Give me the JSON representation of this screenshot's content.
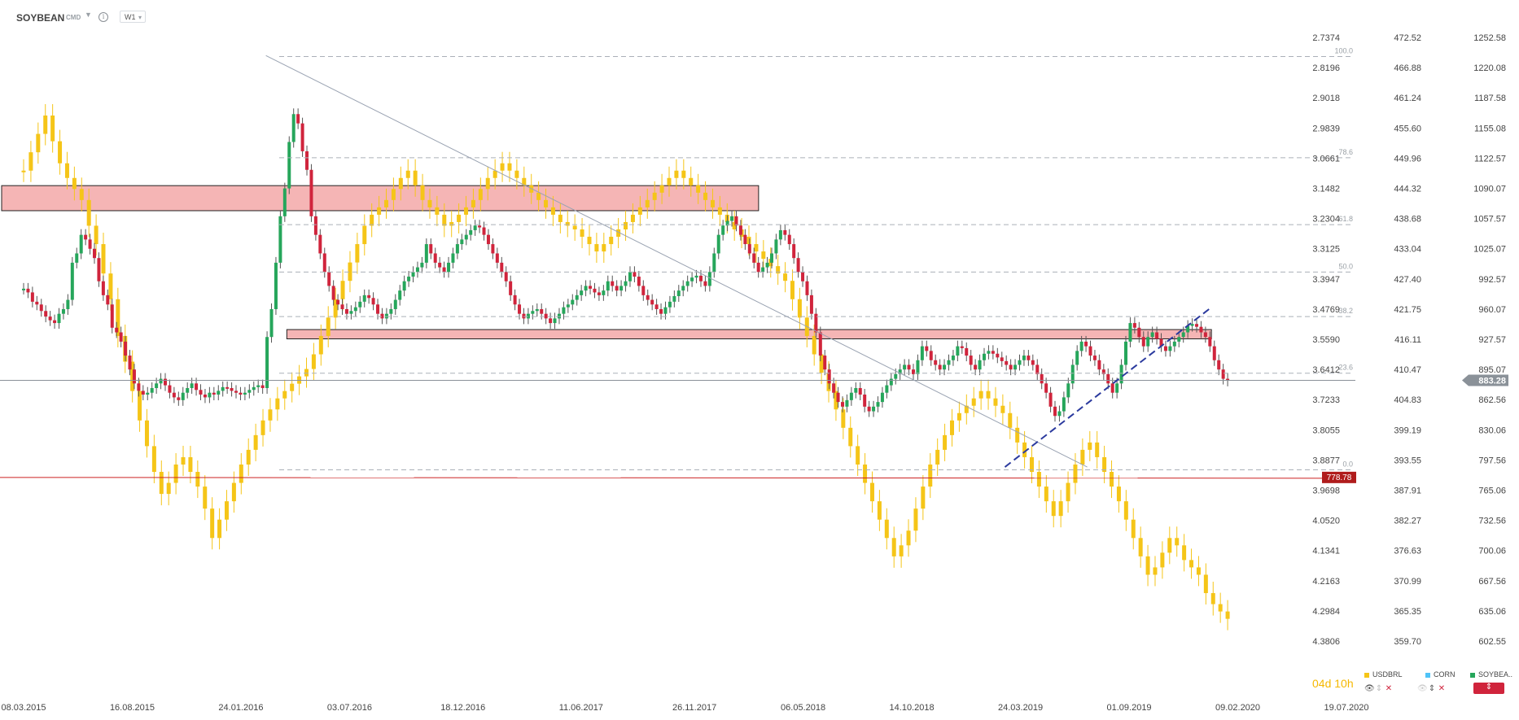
{
  "toolbar": {
    "symbol": "SOYBEAN",
    "instrument_type": "CMD",
    "info_glyph": "i",
    "interval": "W1"
  },
  "colors": {
    "usdbrl": "#f5c518",
    "corn": "#4fc3f7",
    "soybean_up": "#26a65b",
    "soybean_down": "#d0243c",
    "zone_fill": "#f5b5b5",
    "support_line": "#cc2222",
    "trend_dashed": "#2b3a9e",
    "trend_gray": "#9aa3b2",
    "fib_line": "#aab0b8",
    "price_marker_bg": "#8a9198",
    "level_marker_bg": "#b01c1c"
  },
  "chart_data": {
    "type": "candlestick",
    "timeframe": "W1",
    "series": [
      {
        "name": "SOYBEAN",
        "axis": "right",
        "style": "candles"
      },
      {
        "name": "USDBRL",
        "axis": "left",
        "style": "candles"
      },
      {
        "name": "CORN",
        "axis": "middle"
      }
    ],
    "x_tick_labels": [
      "08.03.2015",
      "16.08.2015",
      "24.01.2016",
      "03.07.2016",
      "18.12.2016",
      "11.06.2017",
      "26.11.2017",
      "06.05.2018",
      "14.10.2018",
      "24.03.2019",
      "01.09.2019",
      "09.02.2020",
      "19.07.2020"
    ],
    "axis_left": {
      "labels": [
        "2.7374",
        "2.8196",
        "2.9018",
        "2.9839",
        "3.0661",
        "3.1482",
        "3.2304",
        "3.3125",
        "3.3947",
        "3.4769",
        "3.5590",
        "3.6412",
        "3.7233",
        "3.8055",
        "3.8877",
        "3.9698",
        "4.0520",
        "4.1341",
        "4.2163",
        "4.2984",
        "4.3806"
      ],
      "inverted": true
    },
    "axis_mid": {
      "labels": [
        "472.52",
        "466.88",
        "461.24",
        "455.60",
        "449.96",
        "444.32",
        "438.68",
        "433.04",
        "427.40",
        "421.75",
        "416.11",
        "410.47",
        "404.83",
        "399.19",
        "393.55",
        "387.91",
        "382.27",
        "376.63",
        "370.99",
        "365.35",
        "359.70"
      ]
    },
    "axis_right": {
      "labels": [
        "1252.58",
        "1220.08",
        "1187.58",
        "1155.08",
        "1122.57",
        "1090.07",
        "1057.57",
        "1025.07",
        "992.57",
        "960.07",
        "927.57",
        "895.07",
        "862.56",
        "830.06",
        "797.56",
        "765.06",
        "732.56",
        "700.06",
        "667.56",
        "635.06",
        "602.55"
      ],
      "ylim": [
        602.55,
        1252.58
      ]
    },
    "current_price": "883.28",
    "support_level": "778.78",
    "fibonacci": {
      "levels": [
        "100.0",
        "78.6",
        "61.8",
        "50.0",
        "38.2",
        "23.6",
        "0.0"
      ],
      "values": [
        1232,
        1123,
        1051,
        1000,
        952,
        891,
        787
      ]
    },
    "resistance_zones": [
      {
        "from": 1066,
        "to": 1093,
        "x_from": "2015-01",
        "x_to": "2018-03"
      },
      {
        "from": 928,
        "to": 938,
        "x_from": "2016-04",
        "x_to": "2020-01"
      }
    ],
    "trendlines": [
      {
        "style": "solid",
        "from": [
          "2016-03",
          1233
        ],
        "to": [
          "2019-07",
          790
        ]
      },
      {
        "style": "dashed",
        "from": [
          "2019-03",
          790
        ],
        "to": [
          "2020-01",
          962
        ]
      }
    ],
    "soybean_weekly_close": [
      982,
      978,
      968,
      965,
      958,
      952,
      948,
      945,
      955,
      960,
      970,
      1010,
      1020,
      1040,
      1035,
      1025,
      1015,
      990,
      975,
      965,
      940,
      935,
      925,
      910,
      895,
      880,
      872,
      868,
      870,
      875,
      880,
      885,
      878,
      870,
      865,
      862,
      870,
      875,
      880,
      873,
      868,
      865,
      870,
      868,
      872,
      876,
      875,
      872,
      870,
      868,
      870,
      873,
      876,
      878,
      875,
      930,
      960,
      1010,
      1060,
      1090,
      1140,
      1170,
      1160,
      1130,
      1110,
      1060,
      1040,
      1020,
      1000,
      985,
      970,
      965,
      960,
      955,
      958,
      962,
      968,
      975,
      972,
      965,
      955,
      950,
      955,
      960,
      970,
      980,
      990,
      995,
      1000,
      1005,
      1010,
      1030,
      1020,
      1010,
      1005,
      1000,
      1010,
      1020,
      1030,
      1035,
      1040,
      1045,
      1050,
      1048,
      1040,
      1030,
      1020,
      1010,
      1000,
      990,
      975,
      965,
      955,
      950,
      955,
      958,
      960,
      955,
      950,
      945,
      950,
      955,
      962,
      965,
      970,
      975,
      980,
      985,
      982,
      978,
      975,
      980,
      990,
      985,
      980,
      985,
      990,
      1000,
      995,
      985,
      975,
      970,
      965,
      960,
      955,
      962,
      968,
      974,
      980,
      985,
      990,
      994,
      996,
      990,
      985,
      1000,
      1020,
      1040,
      1050,
      1055,
      1060,
      1050,
      1040,
      1030,
      1020,
      1010,
      1000,
      1005,
      1010,
      1020,
      1035,
      1045,
      1040,
      1030,
      1015,
      1000,
      990,
      975,
      955,
      935,
      910,
      895,
      880,
      870,
      860,
      855,
      862,
      870,
      875,
      868,
      855,
      850,
      855,
      860,
      870,
      878,
      885,
      890,
      895,
      900,
      895,
      890,
      905,
      920,
      915,
      905,
      900,
      895,
      900,
      905,
      910,
      920,
      918,
      910,
      900,
      895,
      905,
      912,
      915,
      912,
      908,
      904,
      900,
      895,
      900,
      905,
      910,
      905,
      900,
      890,
      880,
      870,
      855,
      845,
      850,
      865,
      880,
      900,
      915,
      925,
      920,
      910,
      905,
      895,
      890,
      880,
      870,
      880,
      900,
      925,
      945,
      940,
      930,
      920,
      930,
      935,
      928,
      920,
      915,
      920,
      925,
      930,
      935,
      942,
      944,
      941,
      935,
      930,
      920,
      905,
      895,
      885,
      883
    ],
    "usdbrl_weekly_close": [
      3.1,
      3.05,
      3.0,
      2.95,
      3.02,
      3.08,
      3.12,
      3.15,
      3.18,
      3.25,
      3.3,
      3.38,
      3.45,
      3.55,
      3.62,
      3.7,
      3.78,
      3.85,
      3.92,
      3.98,
      3.95,
      3.9,
      3.88,
      3.92,
      3.96,
      4.02,
      4.1,
      4.05,
      4.0,
      3.95,
      3.9,
      3.86,
      3.82,
      3.78,
      3.75,
      3.72,
      3.7,
      3.68,
      3.66,
      3.64,
      3.6,
      3.55,
      3.5,
      3.45,
      3.4,
      3.35,
      3.3,
      3.25,
      3.22,
      3.2,
      3.18,
      3.15,
      3.12,
      3.1,
      3.14,
      3.18,
      3.2,
      3.22,
      3.25,
      3.24,
      3.22,
      3.2,
      3.18,
      3.15,
      3.12,
      3.1,
      3.08,
      3.1,
      3.12,
      3.14,
      3.16,
      3.18,
      3.2,
      3.22,
      3.24,
      3.25,
      3.26,
      3.28,
      3.3,
      3.32,
      3.3,
      3.28,
      3.26,
      3.24,
      3.22,
      3.2,
      3.18,
      3.16,
      3.14,
      3.12,
      3.1,
      3.12,
      3.14,
      3.16,
      3.18,
      3.2,
      3.22,
      3.24,
      3.26,
      3.28,
      3.3,
      3.32,
      3.34,
      3.36,
      3.38,
      3.4,
      3.45,
      3.5,
      3.55,
      3.6,
      3.65,
      3.7,
      3.75,
      3.8,
      3.85,
      3.9,
      3.95,
      4.0,
      4.05,
      4.1,
      4.15,
      4.12,
      4.08,
      4.02,
      3.96,
      3.9,
      3.86,
      3.82,
      3.78,
      3.76,
      3.74,
      3.72,
      3.7,
      3.72,
      3.74,
      3.76,
      3.8,
      3.84,
      3.88,
      3.92,
      3.96,
      4.0,
      4.04,
      4.0,
      3.95,
      3.9,
      3.86,
      3.84,
      3.88,
      3.92,
      3.96,
      4.0,
      4.05,
      4.1,
      4.15,
      4.2,
      4.18,
      4.14,
      4.1,
      4.12,
      4.16,
      4.18,
      4.2,
      4.25,
      4.28,
      4.3,
      4.32
    ]
  },
  "legend": {
    "timer": "04d 10h",
    "items": [
      {
        "name": "USDBRL",
        "color": "#f5c518"
      },
      {
        "name": "CORN",
        "color": "#4fc3f7"
      },
      {
        "name": "SOYBEA..",
        "color": "#26a65b"
      }
    ]
  }
}
